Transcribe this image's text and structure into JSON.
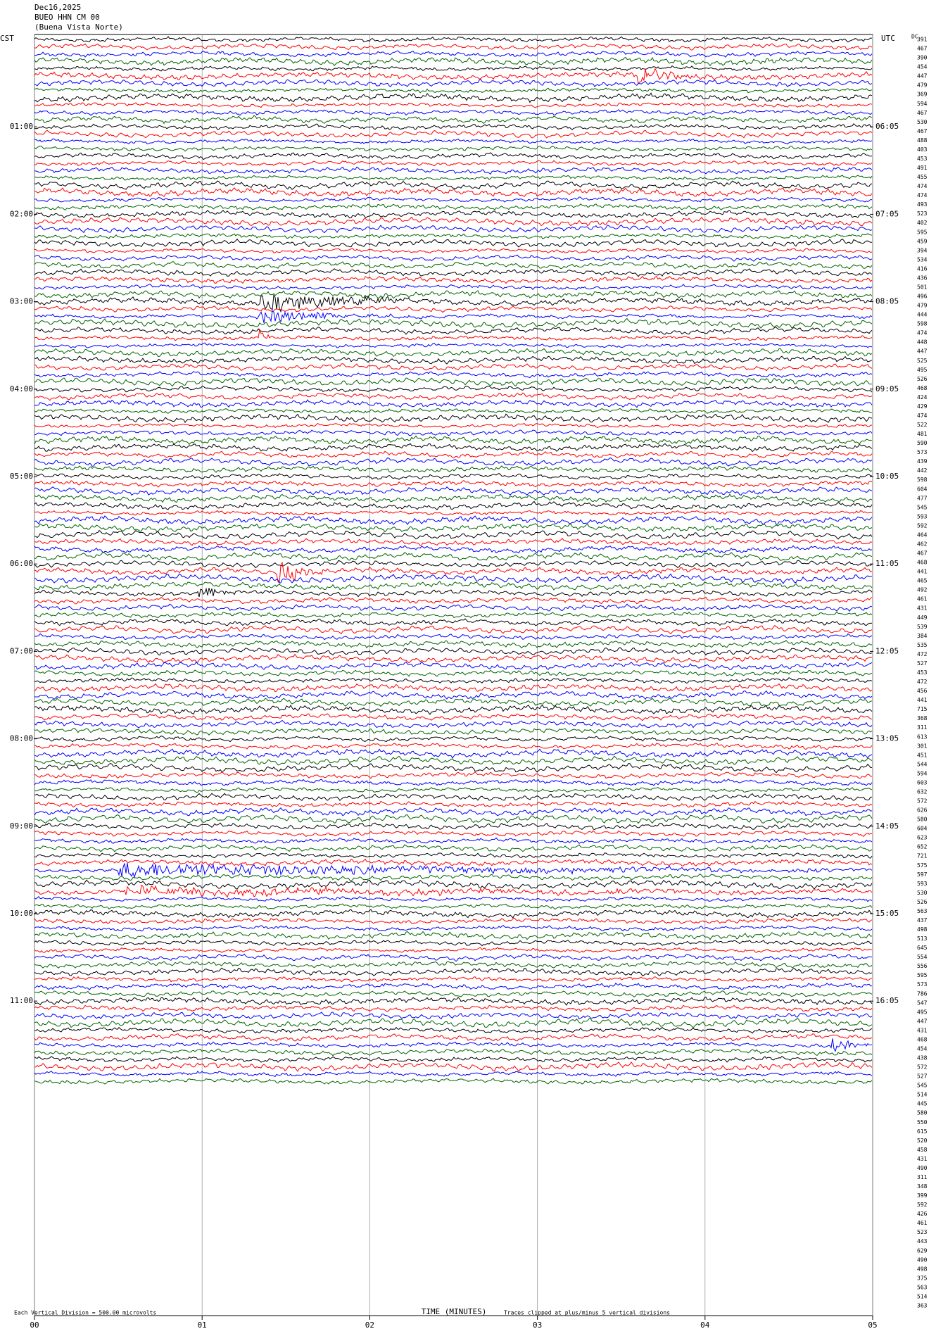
{
  "chart_data": {
    "type": "helicorder",
    "date": "Dec16,2025",
    "station": "BUEO HHN CM 00",
    "location": "(Buena Vista Norte)",
    "left_title": "CST",
    "right_title": "UTC",
    "left_labels": [
      "01:00",
      "02:00",
      "03:00",
      "04:00",
      "05:00",
      "06:00",
      "07:00",
      "08:00",
      "09:00",
      "10:00",
      "11:00"
    ],
    "right_labels": [
      "06:05",
      "07:05",
      "08:05",
      "09:05",
      "10:05",
      "11:05",
      "12:05",
      "13:05",
      "14:05",
      "15:05",
      "16:05"
    ],
    "dc_title": "DC",
    "dc_values": [
      391,
      467,
      390,
      454,
      447,
      479,
      369,
      594,
      467,
      530,
      467,
      488,
      403,
      453,
      491,
      455,
      474,
      474,
      493,
      523,
      402,
      595,
      459,
      394,
      534,
      416,
      436,
      501,
      496,
      479,
      444,
      598,
      474,
      448,
      447,
      525,
      495,
      526,
      468,
      424,
      429,
      474,
      522,
      481,
      590,
      573,
      439,
      442,
      598,
      604,
      477,
      545,
      593,
      592,
      464,
      462,
      467,
      468,
      441,
      465,
      492,
      461,
      431,
      449,
      539,
      384,
      535,
      472,
      527,
      453,
      472,
      456,
      441,
      715,
      368,
      311,
      613,
      301,
      451,
      544,
      594,
      603,
      632,
      572,
      626,
      580,
      604,
      623,
      652,
      721,
      575,
      597,
      593,
      530,
      526,
      563,
      437,
      498,
      513,
      645,
      554,
      556,
      595,
      573,
      786,
      547,
      495,
      447,
      431,
      468,
      454,
      438,
      572,
      527,
      545,
      514,
      445,
      580,
      550,
      615,
      520,
      458,
      431,
      490,
      311,
      348,
      399,
      592,
      426,
      461,
      523,
      443,
      629,
      490,
      498,
      375,
      563,
      514,
      363
    ],
    "xlabel": "TIME (MINUTES)",
    "xlim": [
      0,
      5
    ],
    "xticks": [
      {
        "value": 0,
        "label": "00"
      },
      {
        "value": 1,
        "label": "01"
      },
      {
        "value": 2,
        "label": "02"
      },
      {
        "value": 3,
        "label": "03"
      },
      {
        "value": 4,
        "label": "04"
      },
      {
        "value": 5,
        "label": "05"
      }
    ],
    "scale_note": "Each Vertical Division =  500.00 microvolts",
    "clip_note": "Traces clipped at plus/minus 5 vertical divisions",
    "trace_colors": [
      "#000000",
      "#ff0000",
      "#0000ff",
      "#006400"
    ],
    "grid": true
  }
}
